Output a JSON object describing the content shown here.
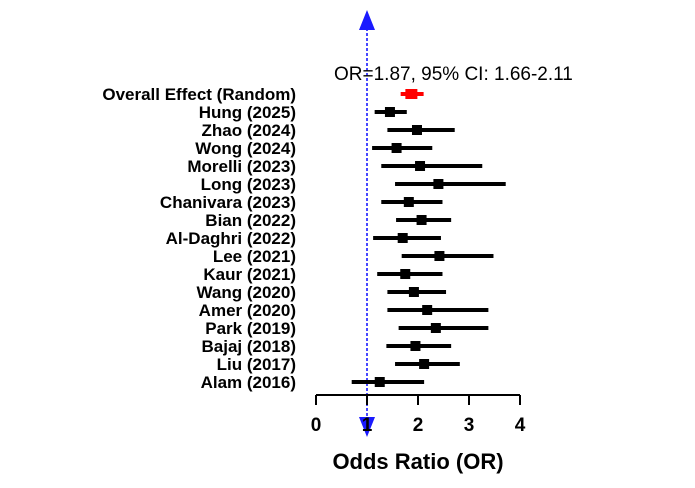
{
  "chart_data": {
    "type": "forest",
    "xlabel": "Odds Ratio (OR)",
    "xlim": [
      0,
      4
    ],
    "xticks": [
      0,
      1,
      2,
      3,
      4
    ],
    "reference_line": 1,
    "annotation": "OR=1.87, 95% CI: 1.66-2.11",
    "colors": {
      "study": "#000000",
      "overall": "#ff0000",
      "reference": "#1a1aff"
    },
    "rows": [
      {
        "label": "Overall Effect (Random)",
        "or": 1.87,
        "lower": 1.66,
        "upper": 2.11,
        "overall": true
      },
      {
        "label": "Hung (2025)",
        "or": 1.45,
        "lower": 1.15,
        "upper": 1.78
      },
      {
        "label": "Zhao (2024)",
        "or": 1.98,
        "lower": 1.4,
        "upper": 2.72
      },
      {
        "label": "Wong (2024)",
        "or": 1.58,
        "lower": 1.1,
        "upper": 2.28
      },
      {
        "label": "Morelli (2023)",
        "or": 2.04,
        "lower": 1.28,
        "upper": 3.26
      },
      {
        "label": "Long (2023)",
        "or": 2.4,
        "lower": 1.55,
        "upper": 3.72
      },
      {
        "label": "Chanivara (2023)",
        "or": 1.82,
        "lower": 1.28,
        "upper": 2.48
      },
      {
        "label": "Bian (2022)",
        "or": 2.07,
        "lower": 1.57,
        "upper": 2.65
      },
      {
        "label": "Al-Daghri (2022)",
        "or": 1.7,
        "lower": 1.12,
        "upper": 2.45
      },
      {
        "label": "Lee (2021)",
        "or": 2.42,
        "lower": 1.68,
        "upper": 3.48
      },
      {
        "label": "Kaur (2021)",
        "or": 1.75,
        "lower": 1.2,
        "upper": 2.48
      },
      {
        "label": "Wang (2020)",
        "or": 1.92,
        "lower": 1.4,
        "upper": 2.55
      },
      {
        "label": "Amer (2020)",
        "or": 2.18,
        "lower": 1.4,
        "upper": 3.38
      },
      {
        "label": "Park (2019)",
        "or": 2.35,
        "lower": 1.62,
        "upper": 3.38
      },
      {
        "label": "Bajaj (2018)",
        "or": 1.95,
        "lower": 1.38,
        "upper": 2.65
      },
      {
        "label": "Liu (2017)",
        "or": 2.12,
        "lower": 1.55,
        "upper": 2.82
      },
      {
        "label": "Alam (2016)",
        "or": 1.25,
        "lower": 0.7,
        "upper": 2.12
      }
    ]
  }
}
